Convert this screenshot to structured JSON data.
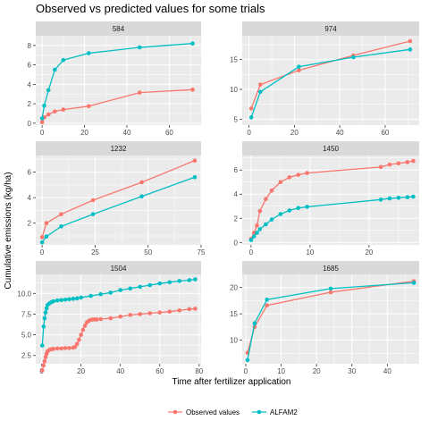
{
  "colors": {
    "observed": "#F8766D",
    "predicted": "#00BFC4",
    "panel_bg": "#EBEBEB",
    "strip_bg": "#D9D9D9",
    "grid": "#FFFFFF"
  },
  "chart_data": {
    "type": "line",
    "title": "Observed vs predicted values for some trials",
    "xlabel": "Time after fertilizer application",
    "ylabel": "Cumulative emissions (kg/ha)",
    "legend_position": "bottom",
    "series_names": [
      "Observed values",
      "ALFAM2"
    ],
    "grid": true,
    "panels": [
      {
        "label": "584",
        "xlim": [
          -3,
          75
        ],
        "ylim": [
          -0.2,
          9.0
        ],
        "xticks": [
          0,
          20,
          40,
          60
        ],
        "yticks": [
          0,
          2,
          4,
          6,
          8
        ],
        "series": [
          {
            "name": "Observed values",
            "x": [
              0,
              1,
              3,
              6,
              10,
              22,
              46,
              71
            ],
            "y": [
              0.1,
              0.6,
              0.9,
              1.2,
              1.4,
              1.75,
              3.15,
              3.45
            ]
          },
          {
            "name": "ALFAM2",
            "x": [
              0,
              1,
              3,
              6,
              10,
              22,
              46,
              71
            ],
            "y": [
              0.5,
              1.8,
              3.4,
              5.5,
              6.5,
              7.2,
              7.8,
              8.2
            ]
          }
        ]
      },
      {
        "label": "974",
        "xlim": [
          -3,
          75
        ],
        "ylim": [
          4,
          19
        ],
        "xticks": [
          0,
          20,
          40,
          60
        ],
        "yticks": [
          5,
          10,
          15
        ],
        "series": [
          {
            "name": "Observed values",
            "x": [
              1,
              5,
              22,
              46,
              71
            ],
            "y": [
              6.8,
              10.8,
              13.2,
              15.7,
              18.1
            ]
          },
          {
            "name": "ALFAM2",
            "x": [
              1,
              5,
              22,
              46,
              71
            ],
            "y": [
              5.3,
              9.6,
              13.8,
              15.4,
              16.7
            ]
          }
        ]
      },
      {
        "label": "1232",
        "xlim": [
          -3,
          75
        ],
        "ylim": [
          0.3,
          7.3
        ],
        "xticks": [
          0,
          25,
          50,
          75
        ],
        "yticks": [
          2,
          4,
          6
        ],
        "series": [
          {
            "name": "Observed values",
            "x": [
              0,
              2,
              9,
              24,
              47,
              72
            ],
            "y": [
              0.9,
              2.0,
              2.7,
              3.8,
              5.2,
              6.9
            ]
          },
          {
            "name": "ALFAM2",
            "x": [
              0,
              2,
              9,
              24,
              47,
              72
            ],
            "y": [
              0.5,
              0.95,
              1.75,
              2.7,
              4.1,
              5.6
            ]
          }
        ]
      },
      {
        "label": "1450",
        "xlim": [
          -1.5,
          28.5
        ],
        "ylim": [
          -0.2,
          7.2
        ],
        "xticks": [
          0,
          10,
          20
        ],
        "yticks": [
          0,
          2,
          4,
          6
        ],
        "series": [
          {
            "name": "Observed values",
            "x": [
              0,
              0.5,
              1,
              1.5,
              2.5,
              3.5,
              5,
              6.5,
              8,
              9.5,
              22,
              23.5,
              25,
              26.5,
              27.5
            ],
            "y": [
              0.3,
              0.8,
              1.4,
              2.6,
              3.6,
              4.3,
              5.0,
              5.4,
              5.6,
              5.75,
              6.25,
              6.45,
              6.55,
              6.65,
              6.75
            ]
          },
          {
            "name": "ALFAM2",
            "x": [
              0,
              0.5,
              1,
              1.5,
              2.5,
              3.5,
              5,
              6.5,
              8,
              9.5,
              22,
              23.5,
              25,
              26.5,
              27.5
            ],
            "y": [
              0.2,
              0.5,
              0.8,
              1.1,
              1.5,
              1.9,
              2.35,
              2.65,
              2.85,
              2.95,
              3.55,
              3.65,
              3.7,
              3.75,
              3.8
            ]
          }
        ]
      },
      {
        "label": "1504",
        "xlim": [
          -3,
          81
        ],
        "ylim": [
          1.5,
          12.3
        ],
        "xticks": [
          0,
          20,
          40,
          60,
          80
        ],
        "yticks": [
          2.5,
          5.0,
          7.5,
          10.0
        ],
        "series": [
          {
            "name": "Observed values",
            "x": [
              0.3,
              1,
              1.5,
              2,
              2.5,
              3,
              4,
              5,
              6,
              8,
              10,
              12,
              14,
              16,
              17,
              18,
              19,
              20,
              21,
              22,
              23,
              24,
              25,
              26,
              27,
              28,
              30,
              35,
              40,
              45,
              50,
              55,
              60,
              65,
              70,
              75,
              78
            ],
            "y": [
              0.7,
              1.3,
              1.8,
              2.3,
              2.7,
              3.0,
              3.2,
              3.25,
              3.3,
              3.35,
              3.35,
              3.4,
              3.4,
              3.45,
              3.55,
              3.9,
              4.4,
              5.0,
              5.6,
              6.1,
              6.5,
              6.7,
              6.8,
              6.85,
              6.85,
              6.85,
              6.9,
              7.0,
              7.2,
              7.4,
              7.5,
              7.6,
              7.7,
              7.8,
              7.95,
              8.1,
              8.15
            ]
          },
          {
            "name": "ALFAM2",
            "x": [
              0.3,
              1,
              1.5,
              2,
              2.5,
              3,
              4,
              5,
              6,
              8,
              10,
              12,
              14,
              16,
              18,
              20,
              25,
              30,
              35,
              40,
              45,
              50,
              55,
              60,
              65,
              70,
              75,
              78
            ],
            "y": [
              3.7,
              6.0,
              7.0,
              7.7,
              8.2,
              8.6,
              8.8,
              8.95,
              9.05,
              9.15,
              9.2,
              9.25,
              9.3,
              9.35,
              9.4,
              9.5,
              9.7,
              9.9,
              10.1,
              10.4,
              10.6,
              10.8,
              11.0,
              11.2,
              11.35,
              11.5,
              11.6,
              11.7
            ]
          }
        ]
      },
      {
        "label": "1685",
        "xlim": [
          -1,
          49
        ],
        "ylim": [
          5.5,
          22.5
        ],
        "xticks": [
          0,
          10,
          20,
          30,
          40,
          50
        ],
        "yticks": [
          10,
          15,
          20
        ],
        "series": [
          {
            "name": "Observed values",
            "x": [
              0.5,
              2.5,
              6,
              24,
              47.5
            ],
            "y": [
              7.6,
              12.5,
              16.6,
              19.1,
              21.2
            ]
          },
          {
            "name": "ALFAM2",
            "x": [
              0.5,
              2.5,
              6,
              24,
              47.5
            ],
            "y": [
              6.2,
              13.2,
              17.7,
              19.8,
              20.9
            ]
          }
        ]
      }
    ]
  }
}
